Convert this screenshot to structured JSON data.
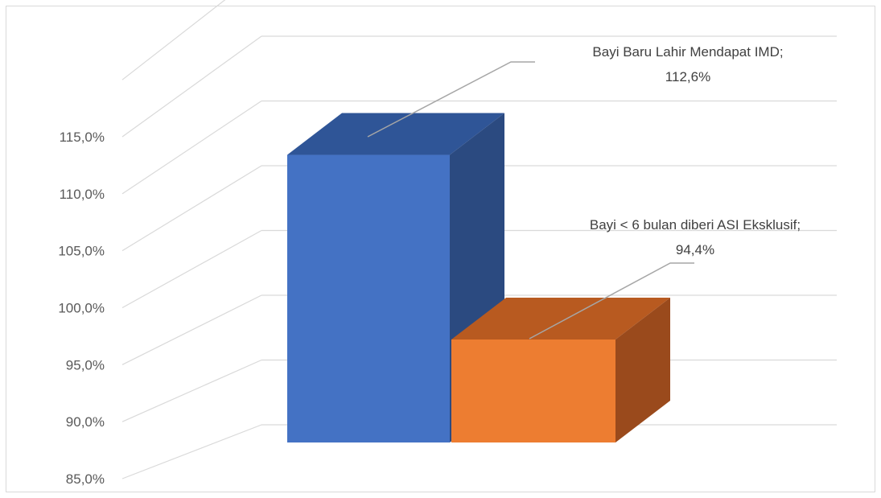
{
  "chart_data": {
    "type": "bar",
    "title": "",
    "xlabel": "",
    "ylabel": "",
    "ylim": [
      85,
      115
    ],
    "ytick_labels": [
      "85,0%",
      "90,0%",
      "95,0%",
      "100,0%",
      "105,0%",
      "110,0%",
      "115,0%"
    ],
    "ytick_values": [
      85,
      90,
      95,
      100,
      105,
      110,
      115
    ],
    "categories": [
      "Bayi Baru Lahir Mendapat IMD",
      "Bayi < 6 bulan diberi ASI Eksklusif"
    ],
    "values": [
      112.6,
      94.4
    ],
    "data_labels": [
      {
        "line1": "Bayi Baru Lahir Mendapat IMD;",
        "line2": "112,6%"
      },
      {
        "line1": "Bayi < 6 bulan diberi ASI Eksklusif;",
        "line2": "94,4%"
      }
    ],
    "grid": true,
    "legend": "none",
    "style": "3d-column",
    "colors": {
      "series1": {
        "front": "#4472c4",
        "top": "#2f5597",
        "side": "#2b4a80"
      },
      "series2": {
        "front": "#ed7d31",
        "top": "#b85a20",
        "side": "#9a4a1c"
      },
      "gridline": "#d9d9d9",
      "tick_text": "#595959",
      "leader_line": "#a6a6a6"
    }
  }
}
